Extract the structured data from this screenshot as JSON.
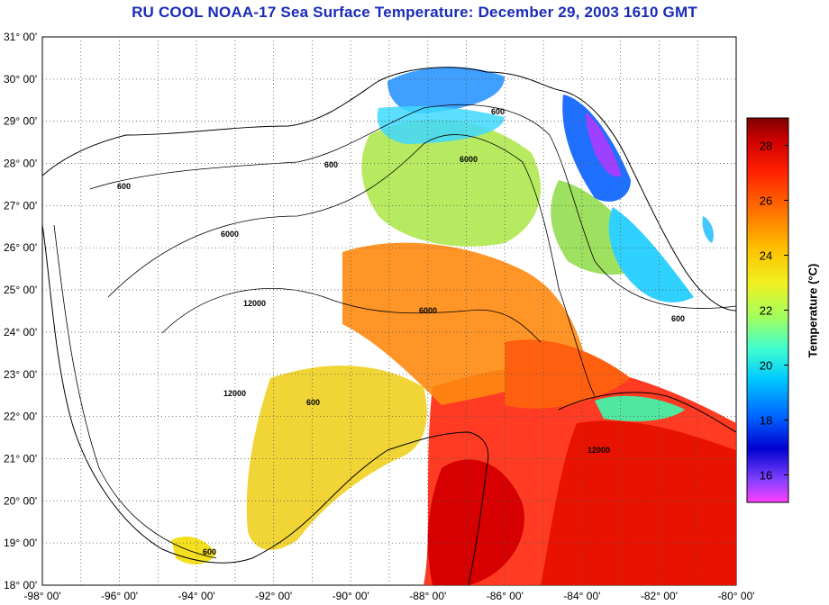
{
  "title": "RU COOL  NOAA-17  Sea Surface Temperature:  December 29, 2003 1610 GMT",
  "map": {
    "lat_labels": [
      "31° 00'",
      "30° 00'",
      "29° 00'",
      "28° 00'",
      "27° 00'",
      "26° 00'",
      "25° 00'",
      "24° 00'",
      "23° 00'",
      "22° 00'",
      "21° 00'",
      "20° 00'",
      "19° 00'",
      "18° 00'"
    ],
    "lon_labels": [
      "-98° 00'",
      "-96° 00'",
      "-94° 00'",
      "-92° 00'",
      "-90° 00'",
      "-88° 00'",
      "-86° 00'",
      "-84° 00'",
      "-82° 00'",
      "-80° 00'"
    ],
    "lat_range": [
      18,
      31
    ],
    "lon_range": [
      -98,
      -80
    ],
    "grid": true,
    "contour_labels": [
      "600",
      "6000",
      "12000"
    ]
  },
  "colorbar": {
    "label": "Temperature (°C)",
    "ticks": [
      "28",
      "26",
      "24",
      "22",
      "20",
      "18",
      "16"
    ],
    "range": [
      15,
      29
    ],
    "colors": [
      "#ff40ff",
      "#8040ff",
      "#0000d0",
      "#0060ff",
      "#00c8ff",
      "#40ffd0",
      "#a0ff60",
      "#f0f020",
      "#ffc000",
      "#ff7000",
      "#ff2000",
      "#d00000",
      "#800000"
    ]
  }
}
